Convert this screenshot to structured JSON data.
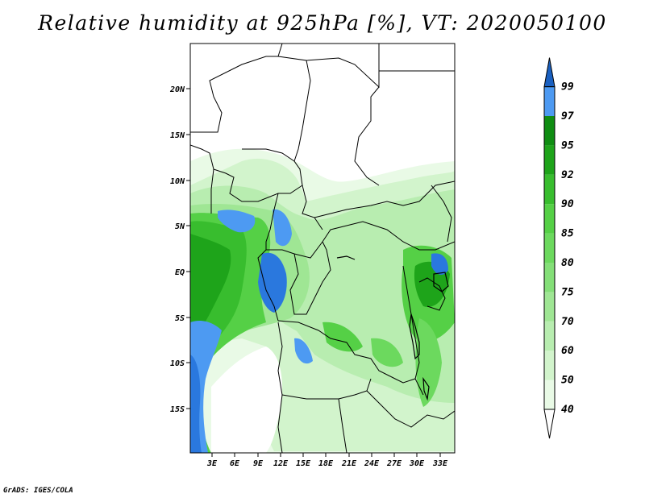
{
  "title": "Relative humidity at 925hPa [%], VT: 2020050100",
  "credit": "GrADS: IGES/COLA",
  "map": {
    "lat_labels": [
      "20N",
      "15N",
      "10N",
      "5N",
      "EQ",
      "5S",
      "10S",
      "15S"
    ],
    "lon_labels": [
      "3E",
      "6E",
      "9E",
      "12E",
      "15E",
      "18E",
      "21E",
      "24E",
      "27E",
      "30E",
      "33E"
    ]
  },
  "colorbar": {
    "levels": [
      "40",
      "50",
      "60",
      "70",
      "75",
      "80",
      "85",
      "90",
      "92",
      "95",
      "97",
      "99"
    ],
    "colors": {
      "below": "#ffffff",
      "40-50": "#e9fae6",
      "50-60": "#d2f4cc",
      "60-70": "#b8edb0",
      "70-75": "#9fe694",
      "75-80": "#84df78",
      "80-85": "#6cd95e",
      "85-90": "#55d046",
      "90-92": "#38bd2e",
      "92-95": "#1ea41a",
      "95-97": "#0f8d12",
      "97-99": "#4d9af2",
      "99-100": "#2a78de",
      "above": "#1a60c0"
    }
  }
}
